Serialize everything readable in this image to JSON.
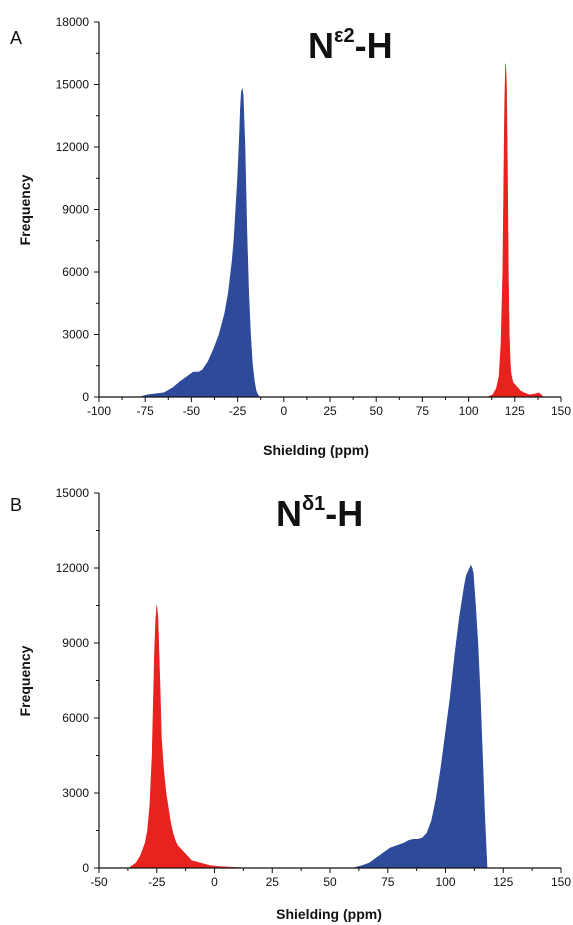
{
  "chart_data": [
    {
      "panel": "A",
      "title": "Nε2-H",
      "title_parts": {
        "base": "N",
        "sup": "ε2",
        "suffix": "-H"
      },
      "type": "area",
      "xlabel": "Shielding (ppm)",
      "ylabel": "Frequency",
      "xlim": [
        -100,
        150
      ],
      "ylim": [
        0,
        18000
      ],
      "xticks": [
        -100,
        -75,
        -50,
        -25,
        0,
        25,
        50,
        75,
        100,
        125,
        150
      ],
      "yticks": [
        0,
        3000,
        6000,
        9000,
        12000,
        15000,
        18000
      ],
      "colors": {
        "blue": "#2e4a9a",
        "red": "#e8231f"
      },
      "series": [
        {
          "color": "blue",
          "x": [
            -78,
            -74,
            -70,
            -65,
            -60,
            -56,
            -52,
            -49,
            -46,
            -44,
            -41,
            -38,
            -35,
            -32,
            -30,
            -28,
            -27,
            -26,
            -25,
            -24,
            -23.5,
            -23,
            -22.5,
            -22,
            -21,
            -20,
            -19,
            -18,
            -17,
            -16,
            -15,
            -14,
            -13
          ],
          "y": [
            0,
            100,
            150,
            200,
            450,
            750,
            1000,
            1200,
            1200,
            1300,
            1700,
            2300,
            3000,
            4000,
            5000,
            6500,
            7500,
            9000,
            10500,
            12500,
            13800,
            14600,
            14800,
            14500,
            12000,
            8000,
            5000,
            3000,
            1600,
            800,
            300,
            100,
            0
          ]
        },
        {
          "color": "red",
          "x": [
            110,
            113,
            115,
            116.5,
            117.5,
            118.5,
            119,
            119.5,
            120,
            120.5,
            121,
            121.5,
            122,
            122.5,
            123,
            124,
            126,
            128,
            130,
            133,
            136,
            138,
            139,
            140.5
          ],
          "y": [
            0,
            100,
            400,
            1000,
            2500,
            6000,
            10000,
            14000,
            16000,
            15000,
            11000,
            6000,
            3000,
            1700,
            1100,
            700,
            500,
            300,
            200,
            100,
            150,
            200,
            120,
            0
          ]
        }
      ]
    },
    {
      "panel": "B",
      "title": "Nδ1-H",
      "title_parts": {
        "base": "N",
        "sup": "δ1",
        "suffix": "-H"
      },
      "type": "area",
      "xlabel": "Shielding (ppm)",
      "ylabel": "Frequency",
      "xlim": [
        -50,
        150
      ],
      "ylim": [
        0,
        15000
      ],
      "xticks": [
        -50,
        -25,
        0,
        25,
        50,
        75,
        100,
        125,
        150
      ],
      "yticks": [
        0,
        3000,
        6000,
        9000,
        12000,
        15000
      ],
      "colors": {
        "blue": "#2e4a9a",
        "red": "#e8231f"
      },
      "series": [
        {
          "color": "red",
          "x": [
            -37,
            -34,
            -32,
            -30,
            -29,
            -28,
            -27,
            -26.5,
            -26,
            -25.5,
            -25,
            -24.5,
            -24,
            -23.5,
            -23,
            -22,
            -21,
            -20,
            -19,
            -18,
            -17,
            -16,
            -14,
            -12,
            -10,
            -8,
            -6,
            -4,
            -2,
            0,
            2,
            4,
            6,
            8,
            10,
            12,
            14
          ],
          "y": [
            0,
            200,
            500,
            1000,
            1500,
            2500,
            4500,
            6500,
            8500,
            9800,
            10500,
            10000,
            8500,
            7000,
            5200,
            3900,
            3000,
            2400,
            1800,
            1400,
            1100,
            900,
            700,
            500,
            300,
            250,
            200,
            150,
            100,
            80,
            60,
            50,
            40,
            30,
            20,
            10,
            0
          ]
        },
        {
          "color": "blue",
          "x": [
            60,
            64,
            67,
            70,
            73,
            76,
            79,
            82,
            84,
            86,
            88,
            90,
            92,
            94,
            96,
            98,
            100,
            102,
            104,
            106,
            108,
            109,
            110,
            110.5,
            111,
            111.5,
            112,
            113,
            114,
            115,
            116,
            117,
            118
          ],
          "y": [
            0,
            100,
            200,
            400,
            600,
            800,
            900,
            1000,
            1100,
            1150,
            1150,
            1200,
            1400,
            1900,
            2800,
            4000,
            5400,
            6800,
            8500,
            10000,
            11200,
            11700,
            11900,
            12000,
            12100,
            12000,
            11800,
            10500,
            9000,
            7000,
            4500,
            2000,
            0
          ]
        }
      ]
    }
  ]
}
